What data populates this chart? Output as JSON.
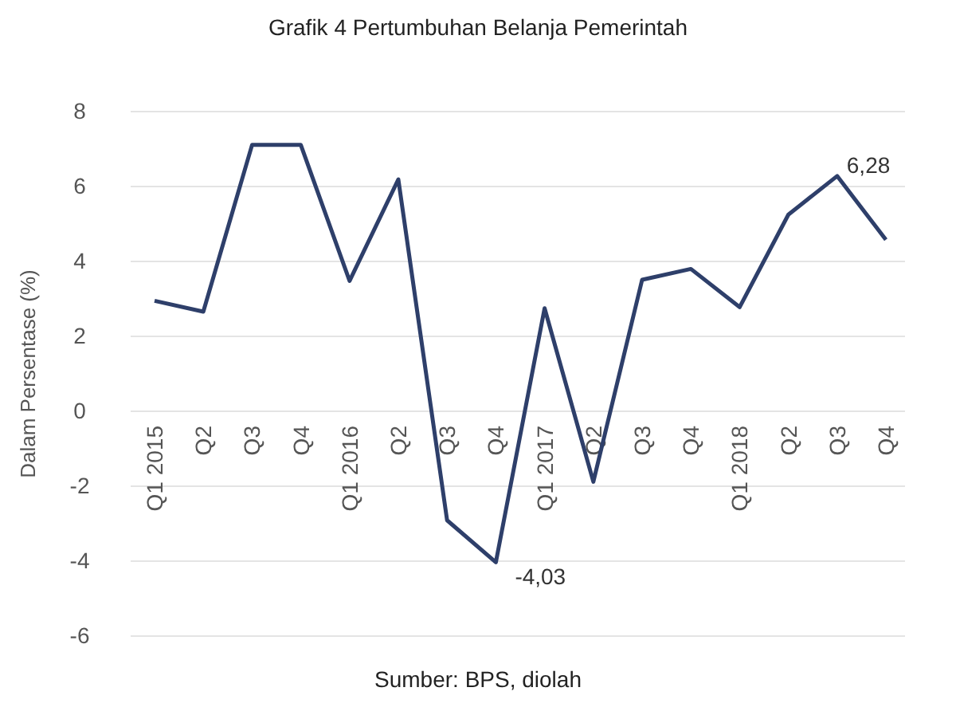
{
  "chart_data": {
    "type": "line",
    "title": "Grafik 4 Pertumbuhan Belanja Pemerintah",
    "ylabel": "Dalam Persentase (%)",
    "annotations": [
      "Sumber: BPS, diolah"
    ],
    "categories": [
      "Q1 2015",
      "Q2",
      "Q3",
      "Q4",
      "Q1 2016",
      "Q2",
      "Q3",
      "Q4",
      "Q1 2017",
      "Q2",
      "Q3",
      "Q4",
      "Q1 2018",
      "Q2",
      "Q3",
      "Q4"
    ],
    "series": [
      {
        "color": "#2e3f6a",
        "values": [
          2.95,
          2.66,
          7.11,
          7.11,
          3.48,
          6.19,
          -2.91,
          -4.03,
          2.75,
          -1.88,
          3.51,
          3.8,
          2.78,
          5.25,
          6.28,
          4.58
        ],
        "value_labels": [
          null,
          null,
          null,
          null,
          null,
          null,
          null,
          "-4,03",
          null,
          null,
          null,
          null,
          null,
          null,
          "6,28",
          null
        ]
      }
    ],
    "ylim": [
      -6,
      8
    ],
    "yticks": [
      -6,
      -4,
      -2,
      0,
      2,
      4,
      6,
      8
    ],
    "grid": "y",
    "marker": "none",
    "line_style": "solid"
  }
}
